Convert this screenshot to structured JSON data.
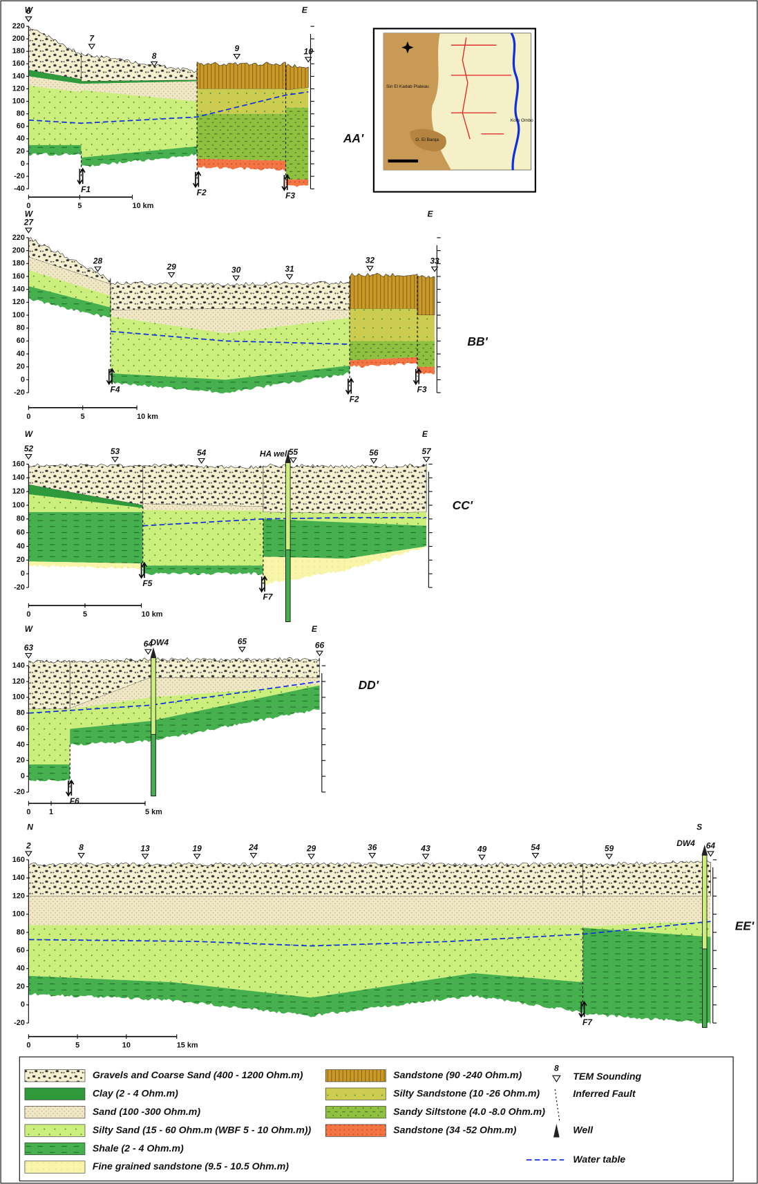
{
  "sections": [
    {
      "name": "AA'",
      "left": "W",
      "right": "E",
      "ticks": [
        220,
        200,
        180,
        160,
        140,
        120,
        100,
        80,
        60,
        40,
        20,
        0,
        -20,
        -40
      ],
      "soundings": [
        "6",
        "7",
        "8",
        "9",
        "10"
      ],
      "faults": [
        "F1",
        "F2",
        "F3"
      ],
      "scale": [
        "0",
        "5",
        "10 km"
      ]
    },
    {
      "name": "BB'",
      "left": "W",
      "right": "E",
      "ticks": [
        220,
        200,
        180,
        160,
        140,
        120,
        100,
        80,
        60,
        40,
        20,
        0,
        -20
      ],
      "soundings": [
        "27",
        "28",
        "29",
        "30",
        "31",
        "32",
        "33"
      ],
      "faults": [
        "F4",
        "F2",
        "F3"
      ],
      "scale": [
        "0",
        "5",
        "10 km"
      ]
    },
    {
      "name": "CC'",
      "left": "W",
      "right": "E",
      "ticks": [
        160,
        140,
        120,
        100,
        80,
        60,
        40,
        20,
        0,
        -20
      ],
      "soundings": [
        "52",
        "53",
        "54",
        "55",
        "56",
        "57"
      ],
      "faults": [
        "F5",
        "F7"
      ],
      "scale": [
        "0",
        "5",
        "10 km"
      ],
      "well": "HA well"
    },
    {
      "name": "DD'",
      "left": "W",
      "right": "E",
      "ticks": [
        140,
        120,
        100,
        80,
        60,
        40,
        20,
        0,
        -20
      ],
      "soundings": [
        "63",
        "64",
        "65",
        "66"
      ],
      "faults": [
        "F6"
      ],
      "scale": [
        "0",
        "1",
        "5 km"
      ],
      "well": "DW4"
    },
    {
      "name": "EE'",
      "left": "N",
      "right": "S",
      "ticks": [
        160,
        140,
        120,
        100,
        80,
        60,
        40,
        20,
        0,
        -20
      ],
      "soundings": [
        "2",
        "8",
        "13",
        "19",
        "24",
        "29",
        "36",
        "43",
        "49",
        "54",
        "59",
        "64"
      ],
      "faults": [
        "F7"
      ],
      "scale": [
        "0",
        "5",
        "10",
        "15 km"
      ],
      "well": "DW4"
    }
  ],
  "map": {
    "labels": [
      "Sin El Kadab Plateau",
      "G. El Barqa",
      "Kom Ombo"
    ]
  },
  "legend": {
    "units": [
      "Gravels and Coarse Sand (400 - 1200 Ohm.m)",
      "Clay (2 - 4 Ohm.m)",
      "Sand (100 -300 Ohm.m)",
      "Silty Sand (15 - 60 Ohm.m (WBF 5 - 10 Ohm.m))",
      "Shale (2 - 4 Ohm.m)",
      "Fine grained sandstone (9.5 - 10.5 Ohm.m)",
      "Sandstone (90 -240 Ohm.m)",
      "Silty Sandstone (10 -26 Ohm.m)",
      "Sandy Siltstone (4.0 -8.0 Ohm.m)",
      "Sandstone (34 -52 Ohm.m)"
    ],
    "sounding_example": "8",
    "symbols": [
      "TEM Sounding",
      "Inferred Fault",
      "Well",
      "Water table"
    ]
  }
}
